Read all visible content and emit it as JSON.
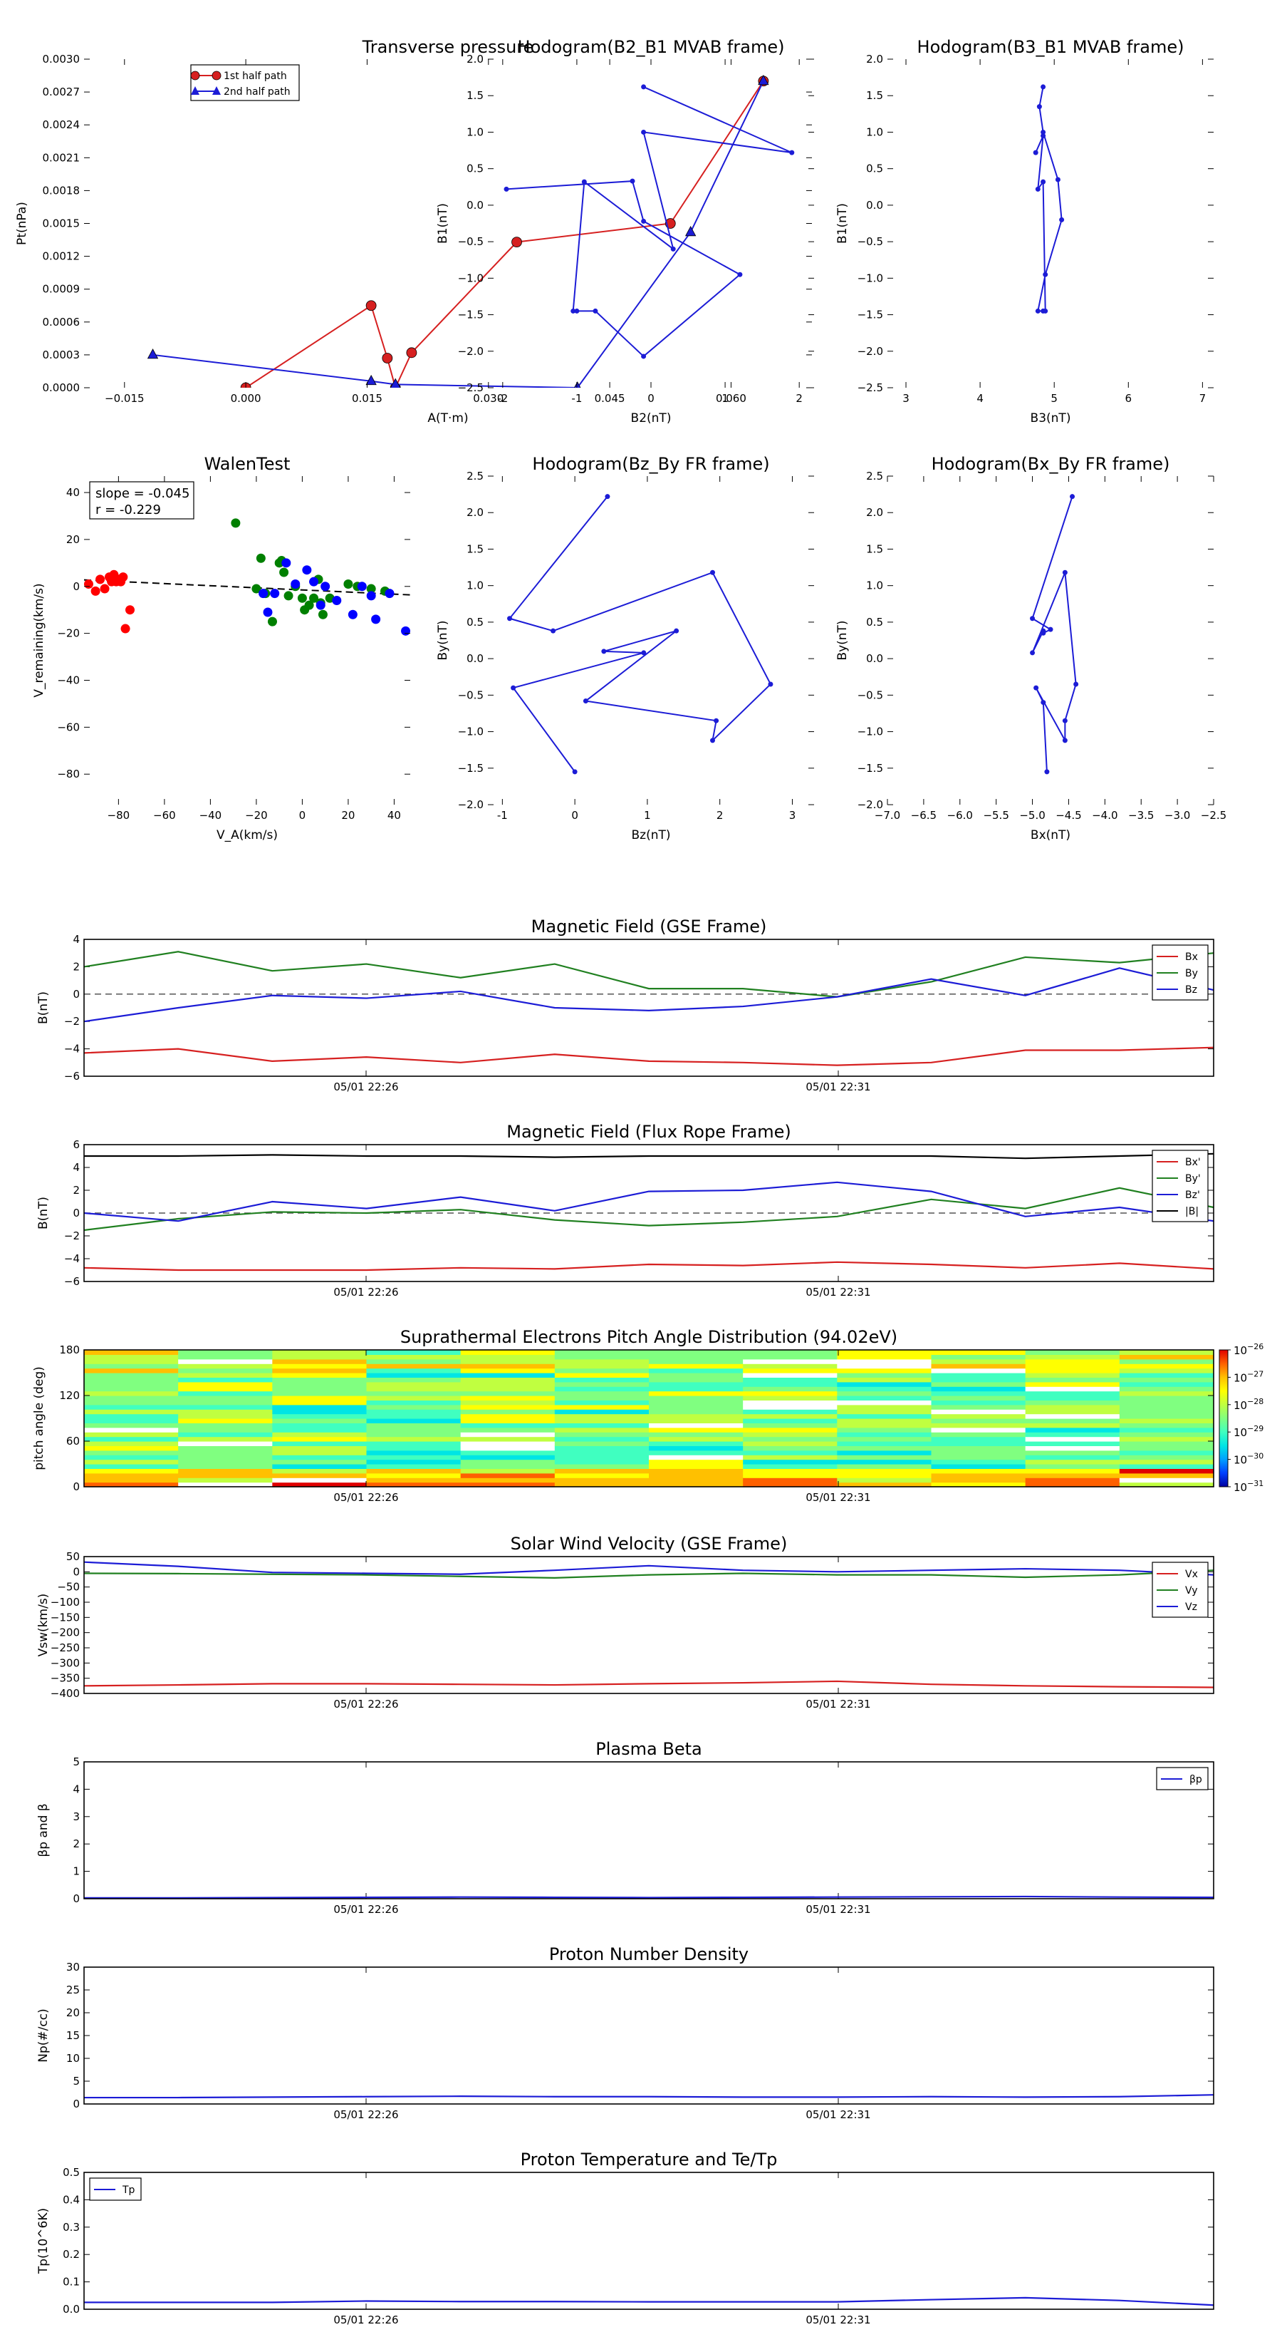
{
  "figure": {
    "time_ticks": [
      "05/01 22:26",
      "05/01 22:31"
    ]
  },
  "chart_data": [
    {
      "id": "tp",
      "type": "line",
      "title": "Transverse pressure",
      "xlabel": "A(T·m)",
      "ylabel": "Pt(nPa)",
      "xlim": [
        -0.02,
        0.07
      ],
      "ylim": [
        0,
        0.003
      ],
      "xticks": [
        -0.015,
        0.0,
        0.015,
        0.03,
        0.045,
        0.06
      ],
      "xtick_labels": [
        "−0.015",
        "0.000",
        "0.015",
        "0.030",
        "0.045",
        "0.060"
      ],
      "yticks": [
        0,
        0.0003,
        0.0006,
        0.0009,
        0.0012,
        0.0015,
        0.0018,
        0.0021,
        0.0024,
        0.0027,
        0.003
      ],
      "ytick_labels": [
        "0.0000",
        "0.0003",
        "0.0006",
        "0.0009",
        "0.0012",
        "0.0015",
        "0.0018",
        "0.0021",
        "0.0024",
        "0.0027",
        "0.0030"
      ],
      "legend": "top-center",
      "series": [
        {
          "name": "1st half path",
          "color": "#d62020",
          "marker": "circle",
          "x": [
            0.0,
            0.0155,
            0.0175,
            0.0185,
            0.0205,
            0.0335,
            0.0525,
            0.064
          ],
          "y": [
            0.0,
            0.00075,
            0.00027,
            0.0,
            0.00032,
            0.00133,
            0.0015,
            0.0028
          ]
        },
        {
          "name": "2nd half path",
          "color": "#1c1cd6",
          "marker": "triangle",
          "x": [
            0.064,
            0.055,
            0.041,
            0.0185,
            0.0155,
            -0.0115
          ],
          "y": [
            0.0028,
            0.00142,
            0.0,
            3e-05,
            6e-05,
            0.0003
          ]
        }
      ]
    },
    {
      "id": "h1",
      "type": "line",
      "title": "Hodogram(B2_B1 MVAB frame)",
      "xlabel": "B2(nT)",
      "ylabel": "B1(nT)",
      "xlim": [
        -2.2,
        2.2
      ],
      "ylim": [
        -2.5,
        2.0
      ],
      "xticks": [
        -2,
        -1,
        0,
        1,
        2
      ],
      "yticks": [
        -2.5,
        -2.0,
        -1.5,
        -1.0,
        -0.5,
        0.0,
        0.5,
        1.0,
        1.5,
        2.0
      ],
      "ytick_labels": [
        "−2.5",
        "−2.0",
        "−1.5",
        "−1.0",
        "−0.5",
        "0.0",
        "0.5",
        "1.0",
        "1.5",
        "2.0"
      ],
      "series": [
        {
          "name": "",
          "color": "#1c1cd6",
          "x": [
            -0.1,
            1.9,
            -0.1,
            0.3,
            -0.9,
            -1.05,
            -1.0,
            -0.75,
            -0.1,
            1.2,
            -0.1,
            -0.25,
            -1.95
          ],
          "y": [
            1.62,
            0.72,
            1.0,
            -0.6,
            0.32,
            -1.45,
            -1.45,
            -1.45,
            -2.07,
            -0.95,
            -0.22,
            0.33,
            0.22
          ]
        }
      ]
    },
    {
      "id": "h2",
      "type": "line",
      "title": "Hodogram(B3_B1 MVAB frame)",
      "xlabel": "B3(nT)",
      "ylabel": "B1(nT)",
      "xlim": [
        2.75,
        7.15
      ],
      "ylim": [
        -2.5,
        2.0
      ],
      "xticks": [
        3,
        4,
        5,
        6,
        7
      ],
      "yticks": [
        -2.5,
        -2.0,
        -1.5,
        -1.0,
        -0.5,
        0.0,
        0.5,
        1.0,
        1.5,
        2.0
      ],
      "ytick_labels": [
        "−2.5",
        "−2.0",
        "−1.5",
        "−1.0",
        "−0.5",
        "0.0",
        "0.5",
        "1.0",
        "1.5",
        "2.0"
      ],
      "series": [
        {
          "name": "",
          "color": "#1c1cd6",
          "x": [
            4.85,
            4.8,
            4.85,
            5.05,
            5.1,
            4.88,
            4.78,
            4.85,
            4.88,
            4.85,
            4.78,
            4.85,
            4.75
          ],
          "y": [
            1.62,
            1.35,
            1.0,
            0.35,
            -0.2,
            -0.95,
            -1.45,
            -1.45,
            -1.45,
            0.32,
            0.22,
            0.95,
            0.72
          ]
        }
      ]
    },
    {
      "id": "walen",
      "type": "scatter",
      "title": "WalenTest",
      "xlabel": "V_A(km/s)",
      "ylabel": "V_remaining(km/s)",
      "xlim": [
        -95,
        47
      ],
      "ylim": [
        -93,
        47
      ],
      "xticks": [
        -80,
        -60,
        -40,
        -20,
        0,
        20,
        40
      ],
      "xtick_labels": [
        "−80",
        "−60",
        "−40",
        "−20",
        "0",
        "20",
        "40"
      ],
      "yticks": [
        -80,
        -60,
        -40,
        -20,
        0,
        20,
        40
      ],
      "ytick_labels": [
        "−80",
        "−60",
        "−40",
        "−20",
        "0",
        "20",
        "40"
      ],
      "annotation": {
        "slope": "slope = -0.045",
        "r": "r = -0.229"
      },
      "fit": {
        "slope": -0.045,
        "intercept": -1.5,
        "color": "#000000"
      },
      "series": [
        {
          "name": "",
          "color": "#ff0000",
          "x": [
            -93,
            -90,
            -88,
            -86,
            -84,
            -83,
            -82,
            -81,
            -80,
            -79,
            -78,
            -77,
            -75
          ],
          "y": [
            1,
            -2,
            3,
            -1,
            4,
            2,
            5,
            2,
            3,
            2,
            4,
            -18,
            -10
          ]
        },
        {
          "name": "",
          "color": "#008000",
          "x": [
            -29,
            -20,
            -18,
            -16,
            -13,
            -10,
            -9,
            -8,
            -6,
            -3,
            0,
            1,
            3,
            5,
            7,
            8,
            9,
            12,
            20,
            24,
            30,
            36
          ],
          "y": [
            27,
            -1,
            12,
            -3,
            -15,
            10,
            11,
            6,
            -4,
            0,
            -5,
            -10,
            -8,
            -5,
            3,
            -7,
            -12,
            -5,
            1,
            0,
            -1,
            -2
          ]
        },
        {
          "name": "",
          "color": "#0000ff",
          "x": [
            -17,
            -15,
            -12,
            -7,
            -3,
            2,
            5,
            8,
            10,
            15,
            22,
            26,
            30,
            32,
            38,
            45
          ],
          "y": [
            -3,
            -11,
            -3,
            10,
            1,
            7,
            2,
            -8,
            0,
            -6,
            -12,
            0,
            -4,
            -14,
            -3,
            -19
          ]
        }
      ]
    },
    {
      "id": "h3",
      "type": "line",
      "title": "Hodogram(Bz_By FR frame)",
      "xlabel": "Bz(nT)",
      "ylabel": "By(nT)",
      "xlim": [
        -1.2,
        3.3
      ],
      "ylim": [
        -2.0,
        2.5
      ],
      "xticks": [
        -1,
        0,
        1,
        2,
        3
      ],
      "yticks": [
        -2.0,
        -1.5,
        -1.0,
        -0.5,
        0.0,
        0.5,
        1.0,
        1.5,
        2.0,
        2.5
      ],
      "ytick_labels": [
        "−2.0",
        "−1.5",
        "−1.0",
        "−0.5",
        "0.0",
        "0.5",
        "1.0",
        "1.5",
        "2.0",
        "2.5"
      ],
      "series": [
        {
          "name": "",
          "color": "#1c1cd6",
          "x": [
            0.0,
            -0.85,
            0.95,
            0.4,
            1.4,
            0.15,
            1.95,
            1.9,
            2.7,
            1.9,
            -0.3,
            -0.9,
            0.45
          ],
          "y": [
            -1.55,
            -0.4,
            0.08,
            0.1,
            0.38,
            -0.58,
            -0.85,
            -1.12,
            -0.35,
            1.18,
            0.38,
            0.55,
            2.22
          ]
        }
      ]
    },
    {
      "id": "h4",
      "type": "line",
      "title": "Hodogram(Bx_By FR frame)",
      "xlabel": "Bx(nT)",
      "ylabel": "By(nT)",
      "xlim": [
        -7.0,
        -2.5
      ],
      "ylim": [
        -2.0,
        2.5
      ],
      "xticks": [
        -7.0,
        -6.5,
        -6.0,
        -5.5,
        -5.0,
        -4.5,
        -4.0,
        -3.5,
        -3.0,
        -2.5
      ],
      "xtick_labels": [
        "−7.0",
        "−6.5",
        "−6.0",
        "−5.5",
        "−5.0",
        "−4.5",
        "−4.0",
        "−3.5",
        "−3.0",
        "−2.5"
      ],
      "yticks": [
        -2.0,
        -1.5,
        -1.0,
        -0.5,
        0.0,
        0.5,
        1.0,
        1.5,
        2.0,
        2.5
      ],
      "ytick_labels": [
        "−2.0",
        "−1.5",
        "−1.0",
        "−0.5",
        "0.0",
        "0.5",
        "1.0",
        "1.5",
        "2.0",
        "2.5"
      ],
      "series": [
        {
          "name": "",
          "color": "#1c1cd6",
          "x": [
            -4.8,
            -4.85,
            -4.95,
            -4.55,
            -4.55,
            -4.4,
            -4.55,
            -5.0,
            -4.85,
            -4.85,
            -4.75,
            -5.0,
            -4.45
          ],
          "y": [
            -1.55,
            -0.6,
            -0.4,
            -1.12,
            -0.85,
            -0.35,
            1.18,
            0.08,
            0.38,
            0.35,
            0.4,
            0.55,
            2.22
          ]
        }
      ]
    },
    {
      "id": "mf_gse",
      "type": "line",
      "title": "Magnetic Field (GSE Frame)",
      "ylabel": "B(nT)",
      "ylim": [
        -6,
        4
      ],
      "yticks": [
        -6,
        -4,
        -2,
        0,
        2,
        4
      ],
      "ytick_labels": [
        "−6",
        "−4",
        "−2",
        "0",
        "2",
        "4"
      ],
      "legend": "right",
      "zero_line": true,
      "series": [
        {
          "name": "Bx",
          "color": "#d62020",
          "values": [
            -4.3,
            -4.0,
            -4.9,
            -4.6,
            -5.0,
            -4.4,
            -4.9,
            -5.0,
            -5.2,
            -5.0,
            -4.1,
            -4.1,
            -3.9
          ]
        },
        {
          "name": "By",
          "color": "#208020",
          "values": [
            2.0,
            3.1,
            1.7,
            2.2,
            1.2,
            2.2,
            0.4,
            0.4,
            -0.2,
            0.9,
            2.7,
            2.3,
            3.0
          ]
        },
        {
          "name": "Bz",
          "color": "#1c1cd6",
          "values": [
            -2.0,
            -1.0,
            -0.1,
            -0.3,
            0.2,
            -1.0,
            -1.2,
            -0.9,
            -0.2,
            1.1,
            -0.1,
            1.9,
            0.3
          ]
        }
      ]
    },
    {
      "id": "mf_fr",
      "type": "line",
      "title": "Magnetic Field (Flux Rope Frame)",
      "ylabel": "B(nT)",
      "ylim": [
        -6,
        6
      ],
      "yticks": [
        -6,
        -4,
        -2,
        0,
        2,
        4,
        6
      ],
      "ytick_labels": [
        "−6",
        "−4",
        "−2",
        "0",
        "2",
        "4",
        "6"
      ],
      "legend": "right",
      "zero_line": true,
      "series": [
        {
          "name": "Bx'",
          "color": "#d62020",
          "values": [
            -4.8,
            -5.0,
            -5.0,
            -5.0,
            -4.8,
            -4.9,
            -4.5,
            -4.6,
            -4.3,
            -4.5,
            -4.8,
            -4.4,
            -4.9
          ]
        },
        {
          "name": "By'",
          "color": "#208020",
          "values": [
            -1.5,
            -0.5,
            0.1,
            0.0,
            0.3,
            -0.6,
            -1.1,
            -0.8,
            -0.3,
            1.2,
            0.4,
            2.2,
            0.5
          ]
        },
        {
          "name": "Bz'",
          "color": "#1c1cd6",
          "values": [
            0.0,
            -0.7,
            1.0,
            0.4,
            1.4,
            0.2,
            1.9,
            2.0,
            2.7,
            1.9,
            -0.3,
            0.5,
            -0.7
          ]
        },
        {
          "name": "|B|",
          "color": "#000000",
          "values": [
            5.0,
            5.0,
            5.1,
            5.0,
            5.0,
            4.9,
            5.0,
            5.0,
            5.0,
            5.0,
            4.8,
            5.0,
            5.2
          ]
        }
      ]
    },
    {
      "id": "pad",
      "type": "heatmap",
      "title": "Suprathermal Electrons Pitch Angle Distribution (94.02eV)",
      "ylabel": "pitch angle (deg)",
      "ylim": [
        0,
        180
      ],
      "yticks": [
        0,
        60,
        120,
        180
      ],
      "colorbar": {
        "min_exp": -31,
        "max_exp": -26,
        "ticks": [
          -26,
          -27,
          -28,
          -29,
          -30,
          -31
        ]
      },
      "n_cols": 12,
      "n_rows": 30
    },
    {
      "id": "vsw",
      "type": "line",
      "title": "Solar Wind Velocity (GSE Frame)",
      "ylabel": "Vsw(km/s)",
      "ylim": [
        -400,
        50
      ],
      "yticks": [
        -400,
        -350,
        -300,
        -250,
        -200,
        -150,
        -100,
        -50,
        0,
        50
      ],
      "ytick_labels": [
        "−400",
        "−350",
        "−300",
        "−250",
        "−200",
        "−150",
        "−100",
        "−50",
        "0",
        "50"
      ],
      "legend": "right",
      "series": [
        {
          "name": "Vx",
          "color": "#d62020",
          "values": [
            -375,
            -372,
            -368,
            -368,
            -370,
            -372,
            -368,
            -365,
            -360,
            -370,
            -375,
            -378,
            -380
          ]
        },
        {
          "name": "Vy",
          "color": "#208020",
          "values": [
            -5,
            -6,
            -8,
            -10,
            -15,
            -20,
            -10,
            -5,
            -10,
            -10,
            -18,
            -10,
            5
          ]
        },
        {
          "name": "Vz",
          "color": "#1c1cd6",
          "values": [
            32,
            18,
            -2,
            -5,
            -8,
            5,
            20,
            5,
            0,
            5,
            10,
            5,
            -10
          ]
        }
      ]
    },
    {
      "id": "beta",
      "type": "line",
      "title": "Plasma Beta",
      "ylabel": "βp and β",
      "ylim": [
        0,
        5
      ],
      "yticks": [
        0,
        1,
        2,
        3,
        4,
        5
      ],
      "legend": "top-right",
      "series": [
        {
          "name": "βp",
          "color": "#1c1cd6",
          "values": [
            0.03,
            0.03,
            0.04,
            0.05,
            0.06,
            0.05,
            0.04,
            0.05,
            0.06,
            0.07,
            0.08,
            0.06,
            0.05
          ]
        }
      ]
    },
    {
      "id": "np",
      "type": "line",
      "title": "Proton Number Density",
      "ylabel": "Np(#/cc)",
      "ylim": [
        0,
        30
      ],
      "yticks": [
        0,
        5,
        10,
        15,
        20,
        25,
        30
      ],
      "series": [
        {
          "name": "",
          "color": "#1c1cd6",
          "values": [
            1.4,
            1.4,
            1.5,
            1.6,
            1.7,
            1.6,
            1.6,
            1.5,
            1.5,
            1.6,
            1.5,
            1.6,
            2.0
          ]
        }
      ]
    },
    {
      "id": "tp_temp",
      "type": "line",
      "title": "Proton Temperature and Te/Tp",
      "ylabel": "Tp(10^6K)",
      "ylim": [
        0,
        0.5
      ],
      "yticks": [
        0,
        0.1,
        0.2,
        0.3,
        0.4,
        0.5
      ],
      "ytick_labels": [
        "0.0",
        "0.1",
        "0.2",
        "0.3",
        "0.4",
        "0.5"
      ],
      "legend": "top-left",
      "series": [
        {
          "name": "Tp",
          "color": "#1c1cd6",
          "values": [
            0.025,
            0.025,
            0.025,
            0.03,
            0.028,
            0.028,
            0.027,
            0.027,
            0.027,
            0.035,
            0.042,
            0.032,
            0.015
          ]
        }
      ]
    }
  ]
}
